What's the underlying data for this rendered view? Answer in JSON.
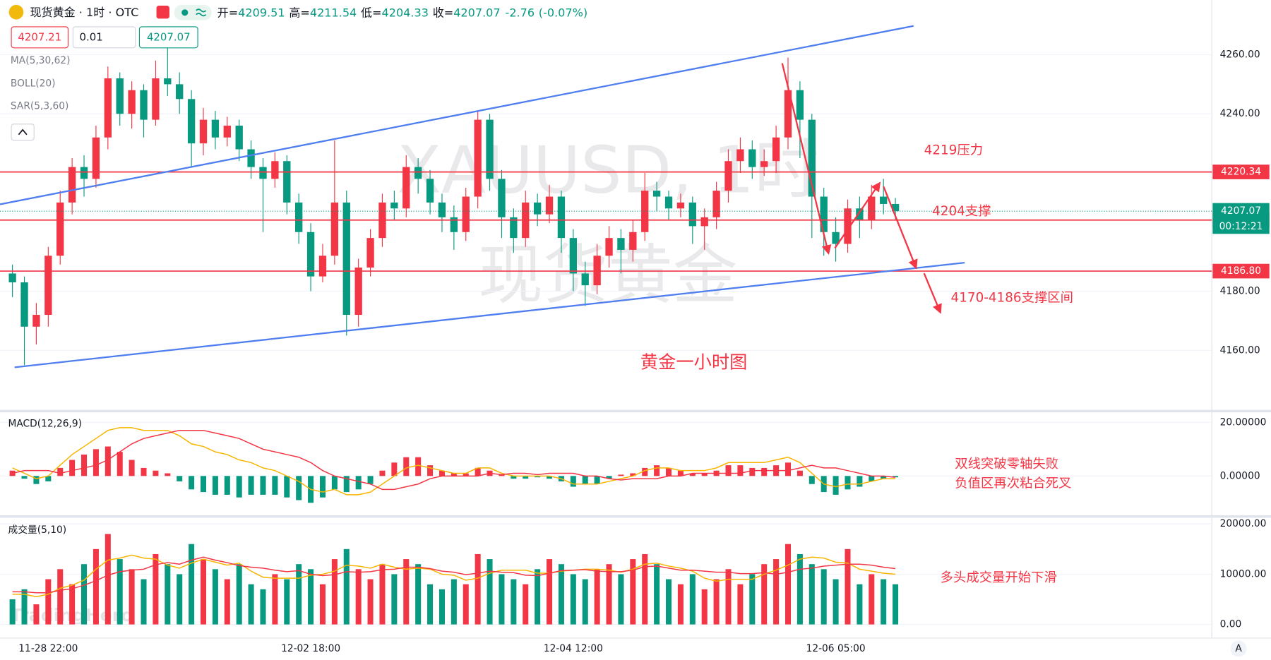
{
  "header": {
    "symbol": "现货黄金 · 1时 · OTC",
    "open_label": "开=",
    "high_label": "高=",
    "low_label": "低=",
    "close_label": "收=",
    "change": "-2.76",
    "change_pct": "(-0.07%)",
    "bid": "4207.21",
    "qty": "0.01",
    "indicators": [
      "MA(5,30,62)",
      "BOLL(20)",
      "SAR(5,3,60)"
    ],
    "axis_button": "A"
  },
  "chart_data": [
    {
      "type": "candlestick",
      "categories": [
        null,
        null,
        null,
        "11-28 22:00",
        null,
        null,
        null,
        null,
        null,
        null,
        null,
        null,
        null,
        null,
        null,
        null,
        null,
        null,
        null,
        null,
        null,
        null,
        null,
        null,
        null,
        "12-02 18:00",
        null,
        null,
        null,
        null,
        null,
        null,
        null,
        null,
        null,
        null,
        null,
        null,
        null,
        null,
        null,
        null,
        null,
        null,
        null,
        null,
        null,
        "12-04 12:00",
        null,
        null,
        null,
        null,
        null,
        null,
        null,
        null,
        null,
        null,
        null,
        null,
        null,
        null,
        null,
        null,
        null,
        null,
        null,
        null,
        null,
        "12-06 05:00",
        null,
        null,
        null,
        null,
        null
      ],
      "open": [
        4186,
        4183,
        4168,
        4172,
        4192,
        4210,
        4222,
        4218,
        4232,
        4252,
        4240,
        4248,
        4238,
        4252,
        4250,
        4245,
        4230,
        4238,
        4232,
        4236,
        4228,
        4222,
        4218,
        4224,
        4210,
        4200,
        4185,
        4192,
        4210,
        4172,
        4188,
        4198,
        4210,
        4208,
        4222,
        4218,
        4210,
        4205,
        4200,
        4212,
        4238,
        4218,
        4205,
        4198,
        4210,
        4206,
        4212,
        4198,
        4186,
        4182,
        4192,
        4198,
        4194,
        4200,
        4214,
        4212,
        4208,
        4210,
        4202,
        4205,
        4214,
        4224,
        4228,
        4222,
        4224,
        4232,
        4248,
        4238,
        4212,
        4200,
        4196,
        4208,
        4204,
        4212,
        4209.51
      ],
      "high": [
        4189,
        4185,
        4176,
        4195,
        4214,
        4225,
        4226,
        4236,
        4256,
        4254,
        4251,
        4250,
        4258,
        4263,
        4254,
        4248,
        4242,
        4241,
        4239,
        4238,
        4231,
        4225,
        4227,
        4226,
        4213,
        4203,
        4196,
        4231,
        4214,
        4191,
        4201,
        4213,
        4214,
        4226,
        4225,
        4221,
        4213,
        4209,
        4215,
        4241,
        4240,
        4221,
        4208,
        4214,
        4213,
        4216,
        4214,
        4201,
        4190,
        4196,
        4202,
        4201,
        4204,
        4220,
        4217,
        4214,
        4213,
        4212,
        4208,
        4217,
        4228,
        4232,
        4231,
        4228,
        4236,
        4259,
        4251,
        4240,
        4215,
        4205,
        4211,
        4212,
        4216,
        4218,
        4211.54
      ],
      "low": [
        4178,
        4155,
        4162,
        4168,
        4189,
        4206,
        4212,
        4215,
        4228,
        4236,
        4235,
        4232,
        4236,
        4246,
        4240,
        4222,
        4226,
        4228,
        4229,
        4224,
        4218,
        4200,
        4215,
        4206,
        4196,
        4180,
        4183,
        4189,
        4165,
        4168,
        4185,
        4195,
        4204,
        4205,
        4213,
        4206,
        4200,
        4194,
        4197,
        4208,
        4214,
        4198,
        4193,
        4195,
        4202,
        4203,
        4193,
        4180,
        4175,
        4179,
        4188,
        4186,
        4190,
        4197,
        4207,
        4204,
        4205,
        4196,
        4194,
        4201,
        4210,
        4220,
        4218,
        4219,
        4220,
        4228,
        4225,
        4198,
        4192,
        4190,
        4193,
        4198,
        4201,
        4206,
        4204.33
      ],
      "close": [
        4183,
        4168,
        4172,
        4192,
        4210,
        4222,
        4218,
        4232,
        4252,
        4240,
        4248,
        4238,
        4252,
        4250,
        4245,
        4230,
        4238,
        4232,
        4236,
        4228,
        4222,
        4218,
        4224,
        4210,
        4200,
        4185,
        4192,
        4210,
        4172,
        4188,
        4198,
        4210,
        4208,
        4222,
        4218,
        4210,
        4205,
        4200,
        4212,
        4238,
        4218,
        4205,
        4198,
        4210,
        4206,
        4212,
        4198,
        4186,
        4182,
        4192,
        4198,
        4194,
        4200,
        4214,
        4212,
        4208,
        4210,
        4202,
        4205,
        4214,
        4224,
        4228,
        4222,
        4224,
        4232,
        4248,
        4238,
        4212,
        4200,
        4196,
        4208,
        4204,
        4212,
        4209.51,
        4207.07
      ],
      "up_color": "#f23645",
      "down_color": "#089981",
      "ylim": [
        4140,
        4278.5
      ],
      "yticks": [
        {
          "value": 4160,
          "label": "4160.00"
        },
        {
          "value": 4180,
          "label": "4180.00"
        },
        {
          "value": 4240,
          "label": "4240.00"
        },
        {
          "value": 4260,
          "label": "4260.00"
        }
      ],
      "grid": true,
      "price_lines": [
        {
          "value": 4220.34,
          "color": "#f23645"
        },
        {
          "value": 4204.06,
          "color": "#f23645"
        },
        {
          "value": 4186.8,
          "label": "4186.80",
          "color": "#f23645"
        }
      ],
      "countdown": "00:12:21",
      "watermarks": [
        "XAUUSD, 1时",
        "现货黄金"
      ],
      "annotations": [
        "4219压力",
        "4204支撑",
        "4170-4186支撑区间",
        "黄金一小时图"
      ]
    },
    {
      "type": "macd",
      "title": "MACD(12,26,9)",
      "values": [
        2,
        -1,
        -3,
        -2,
        3,
        6,
        8,
        10,
        11,
        9,
        6,
        3,
        2,
        1,
        -2,
        -5,
        -6,
        -7,
        -7,
        -8,
        -7,
        -7,
        -7,
        -8,
        -9,
        -10,
        -8,
        -5,
        -6,
        -5,
        -3,
        2,
        5,
        7,
        7,
        4,
        2,
        1,
        1,
        3,
        2,
        0.5,
        -1,
        -1,
        -0.5,
        -1,
        -2,
        -4,
        -3,
        -3,
        -1,
        0.5,
        1,
        3,
        4,
        3,
        2,
        1,
        1,
        2,
        4,
        4,
        3,
        3,
        4,
        5,
        2,
        -3,
        -6,
        -7,
        -5,
        -4,
        -2,
        -1,
        -0.5
      ],
      "positive_color": "#f23645",
      "negative_color": "#089981",
      "series": [
        {
          "color": "#f7b500",
          "values": [
            3,
            1,
            -1,
            0,
            4,
            8,
            11,
            14,
            17,
            18,
            18,
            17,
            17,
            17,
            15,
            12,
            11,
            9,
            8,
            6,
            5,
            3,
            2,
            0,
            -2,
            -5,
            -6,
            -5,
            -7,
            -7,
            -6,
            -3,
            0,
            3,
            4,
            3,
            2,
            1,
            1,
            3,
            3,
            1,
            0,
            0,
            0,
            0,
            -1,
            -3,
            -3,
            -3,
            -2,
            -1,
            0,
            2,
            3,
            3,
            2,
            2,
            2,
            3,
            5,
            5,
            5,
            5,
            6,
            7,
            5,
            1,
            -3,
            -4,
            -3,
            -3,
            -2,
            -1,
            -1
          ]
        },
        {
          "color": "#f23645",
          "values": [
            1,
            2,
            2,
            2,
            1,
            2,
            3,
            4,
            6,
            9,
            12,
            14,
            15,
            16,
            17,
            17,
            17,
            16,
            15,
            14,
            12,
            10,
            9,
            8,
            7,
            5,
            2,
            0,
            -1,
            -2,
            -3,
            -5,
            -5,
            -4,
            -3,
            -1,
            0,
            0,
            0,
            0,
            1,
            0.5,
            1,
            1,
            0.5,
            1,
            1,
            1,
            0,
            0,
            -1,
            -1.5,
            -1,
            -1,
            -1,
            0,
            0,
            1,
            1,
            1,
            1,
            1,
            2,
            2,
            2,
            2,
            3,
            4,
            3,
            3,
            2,
            1,
            0,
            0,
            -0.5
          ]
        }
      ],
      "ylim": [
        -14.5,
        23.3
      ],
      "yticks": [
        {
          "value": 0,
          "label": "0.00000"
        },
        {
          "value": 20,
          "label": "20.00000"
        }
      ],
      "notes": [
        "双线突破零轴失败",
        "负值区再次粘合死叉"
      ]
    },
    {
      "type": "volume",
      "title": "成交量(5,10)",
      "values": [
        5000,
        7000,
        4000,
        9000,
        11000,
        8000,
        12000,
        15000,
        18000,
        13000,
        11000,
        9000,
        14000,
        12000,
        10000,
        16000,
        13000,
        11000,
        9000,
        12000,
        8000,
        7000,
        10000,
        9000,
        12000,
        11000,
        8000,
        13000,
        15000,
        11000,
        9000,
        12000,
        10000,
        13000,
        12000,
        8000,
        7000,
        9000,
        8000,
        14000,
        13000,
        10000,
        9000,
        8000,
        11000,
        13000,
        12000,
        10000,
        9000,
        11000,
        12000,
        10000,
        13000,
        14000,
        12000,
        9000,
        8000,
        10000,
        7000,
        9000,
        11000,
        8000,
        10000,
        12000,
        13000,
        16000,
        14000,
        12000,
        11000,
        9000,
        15000,
        8000,
        10000,
        9000,
        8000
      ],
      "series": [
        {
          "color": "#f7b500",
          "values": [
            6000,
            6000,
            5500,
            6000,
            7200,
            7800,
            8800,
            11000,
            12800,
            13200,
            13800,
            13200,
            13000,
            11800,
            11200,
            12200,
            13000,
            12400,
            11800,
            12200,
            10600,
            9400,
            9200,
            9200,
            9200,
            9800,
            10000,
            10600,
            11800,
            11600,
            11200,
            12000,
            11400,
            11000,
            11200,
            11000,
            10000,
            9800,
            8800,
            9200,
            10200,
            10800,
            10800,
            10800,
            10200,
            10200,
            10600,
            10800,
            11000,
            11000,
            10800,
            10400,
            11000,
            12000,
            12200,
            11600,
            11200,
            10600,
            9200,
            8600,
            9000,
            9000,
            9000,
            10000,
            10800,
            11800,
            13000,
            13400,
            13200,
            12400,
            12200,
            11000,
            10600,
            10200,
            10000
          ]
        },
        {
          "color": "#f23645",
          "values": [
            6500,
            6500,
            6300,
            6300,
            6800,
            7100,
            7800,
            8700,
            9800,
            10500,
            10800,
            11000,
            11900,
            12300,
            12000,
            12800,
            13400,
            12800,
            12300,
            11700,
            11400,
            11200,
            10800,
            10500,
            10700,
            10000,
            9700,
            9900,
            10500,
            10400,
            10500,
            10900,
            11000,
            11400,
            11400,
            11100,
            10600,
            10400,
            9900,
            10200,
            10600,
            10400,
            10300,
            9800,
            9700,
            10200,
            10700,
            10800,
            10900,
            10600,
            10500,
            10500,
            10800,
            11500,
            11600,
            11200,
            10800,
            10800,
            10600,
            10400,
            10400,
            10100,
            10100,
            10300,
            10000,
            10400,
            11000,
            11200,
            11600,
            11800,
            12000,
            12000,
            11800,
            11400,
            11100
          ]
        }
      ],
      "ylim": [
        -2400,
        21000
      ],
      "yticks": [
        {
          "value": 0,
          "label": "0.00"
        },
        {
          "value": 10000,
          "label": "10000.00"
        },
        {
          "value": 20000,
          "label": "20000.00"
        }
      ],
      "watermark": "TradingHero",
      "notes": [
        "多头成交量开始下滑"
      ]
    }
  ]
}
